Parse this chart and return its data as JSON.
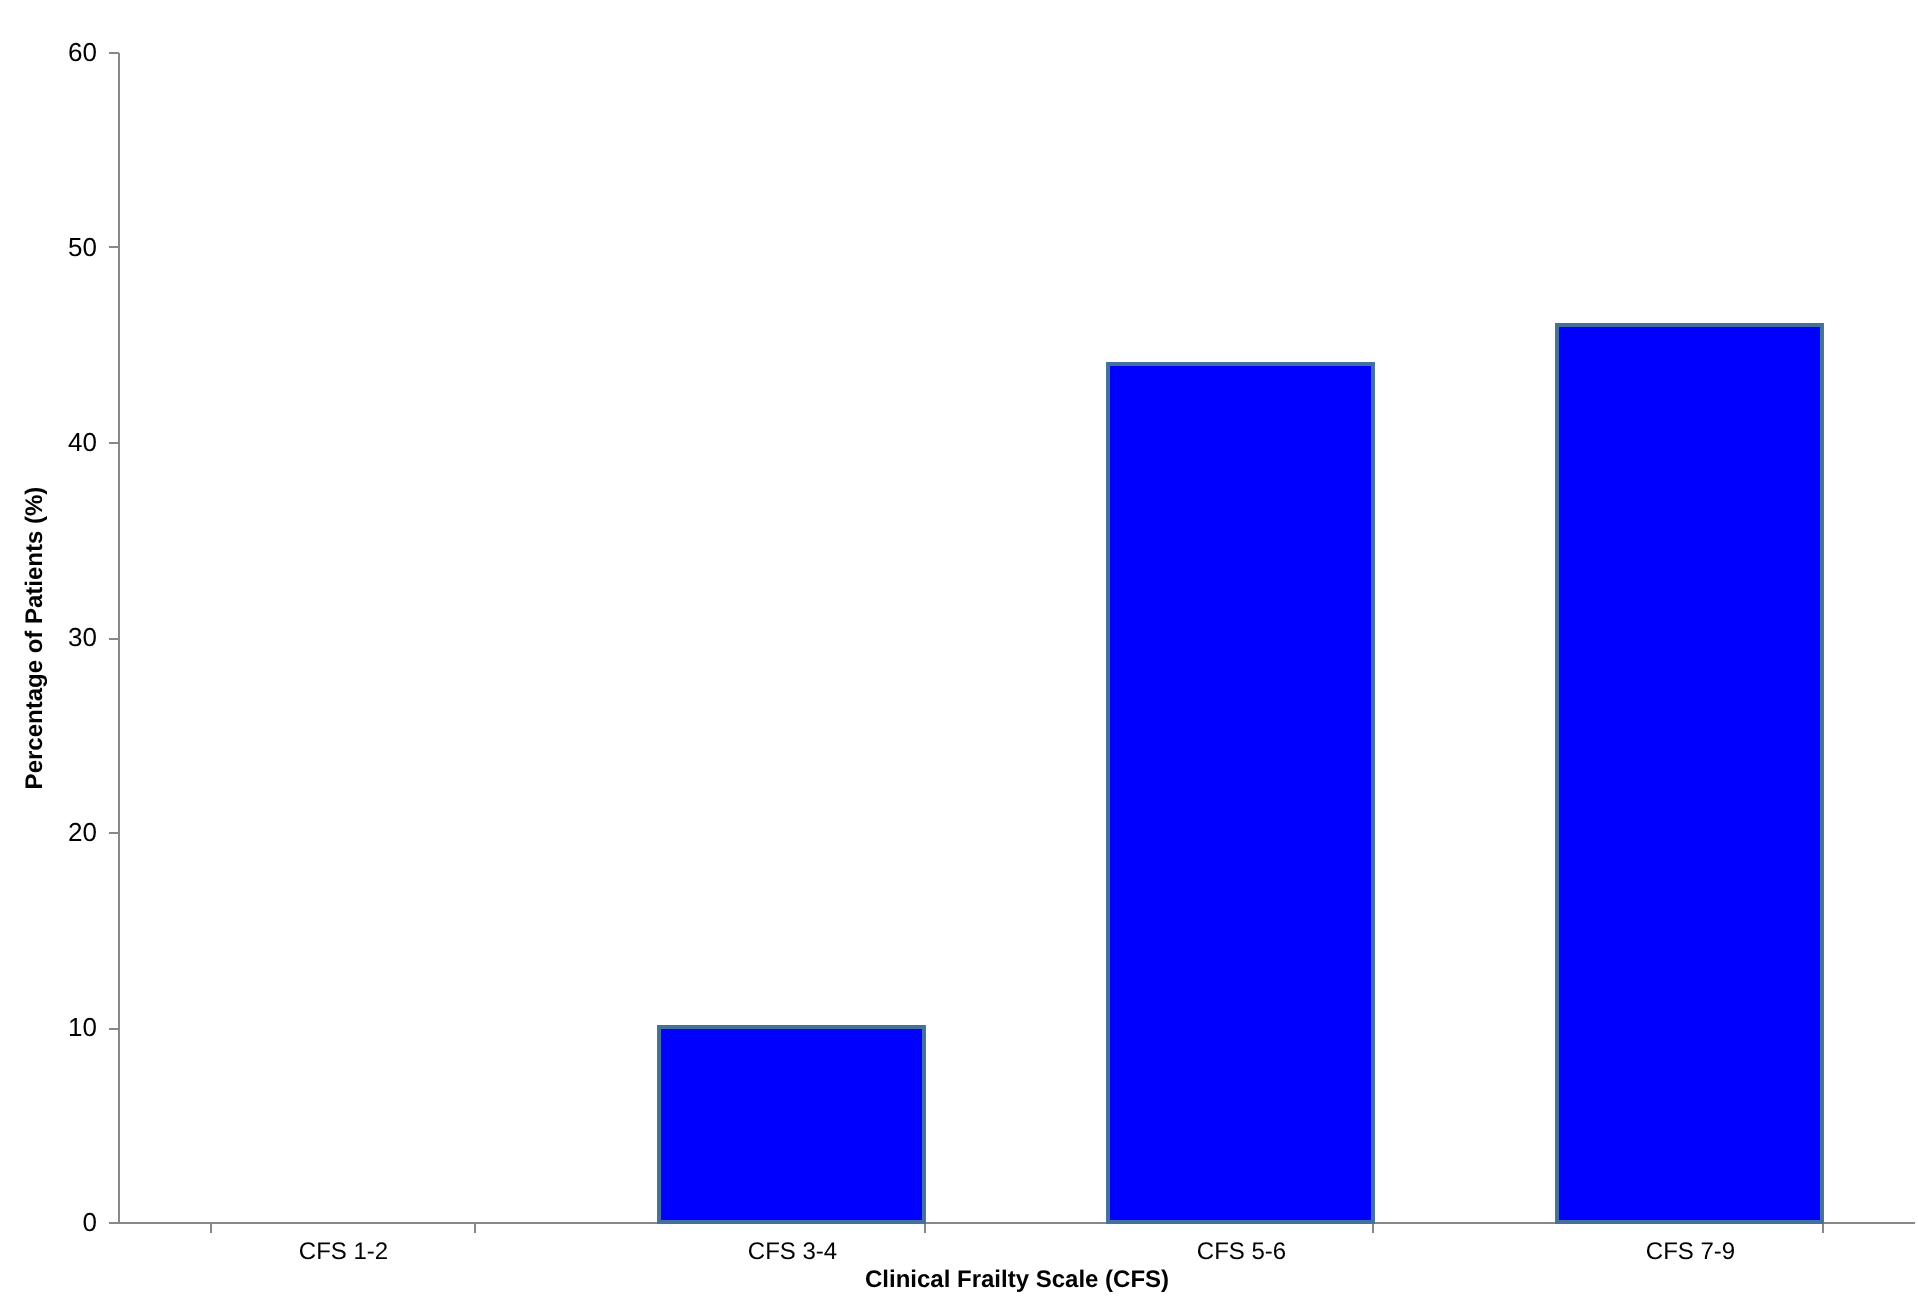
{
  "chart_data": {
    "type": "bar",
    "xlabel": "Clinical Frailty Scale (CFS)",
    "ylabel": "Percentage of Patients (%)",
    "categories": [
      "CFS 1-2",
      "CFS 3-4",
      "CFS 5-6",
      "CFS 7-9"
    ],
    "values": [
      0,
      10,
      44,
      46
    ],
    "color": "#0000ff",
    "ylim": [
      0,
      60
    ],
    "yticks": [
      0,
      10,
      20,
      30,
      40,
      50,
      60
    ],
    "grid": false
  }
}
